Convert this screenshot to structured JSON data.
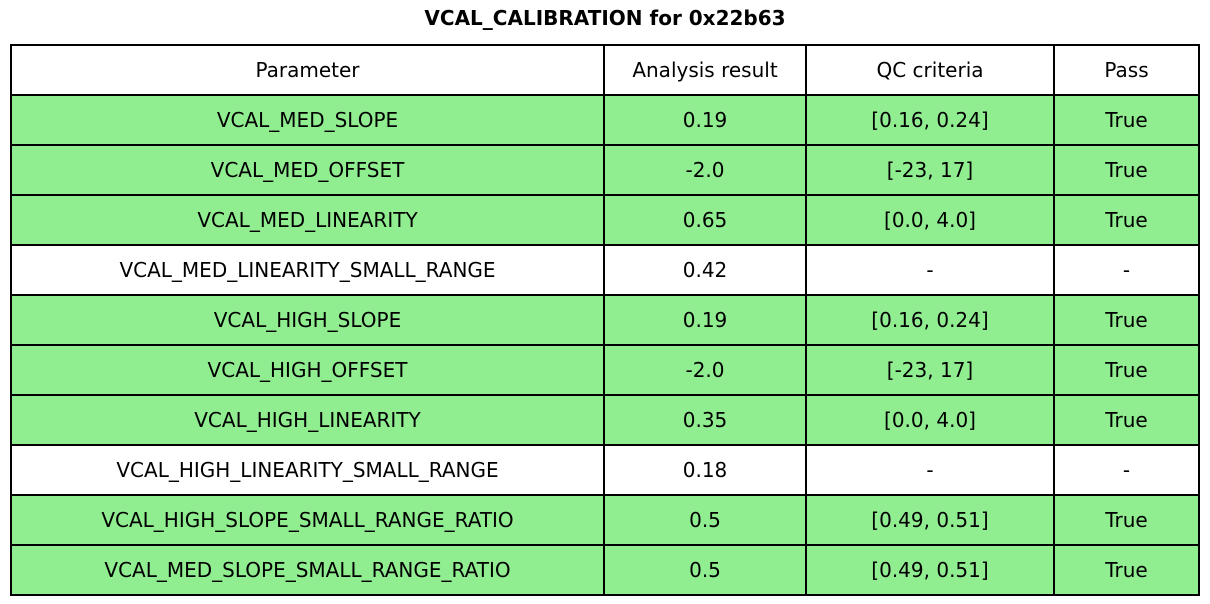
{
  "chart_data": {
    "type": "table",
    "title": "VCAL_CALIBRATION for 0x22b63",
    "columns": [
      "Parameter",
      "Analysis result",
      "QC criteria",
      "Pass"
    ],
    "rows": [
      {
        "cells": [
          "VCAL_MED_SLOPE",
          "0.19",
          "[0.16, 0.24]",
          "True"
        ],
        "highlighted": true
      },
      {
        "cells": [
          "VCAL_MED_OFFSET",
          "-2.0",
          "[-23, 17]",
          "True"
        ],
        "highlighted": true
      },
      {
        "cells": [
          "VCAL_MED_LINEARITY",
          "0.65",
          "[0.0, 4.0]",
          "True"
        ],
        "highlighted": true
      },
      {
        "cells": [
          "VCAL_MED_LINEARITY_SMALL_RANGE",
          "0.42",
          "-",
          "-"
        ],
        "highlighted": false
      },
      {
        "cells": [
          "VCAL_HIGH_SLOPE",
          "0.19",
          "[0.16, 0.24]",
          "True"
        ],
        "highlighted": true
      },
      {
        "cells": [
          "VCAL_HIGH_OFFSET",
          "-2.0",
          "[-23, 17]",
          "True"
        ],
        "highlighted": true
      },
      {
        "cells": [
          "VCAL_HIGH_LINEARITY",
          "0.35",
          "[0.0, 4.0]",
          "True"
        ],
        "highlighted": true
      },
      {
        "cells": [
          "VCAL_HIGH_LINEARITY_SMALL_RANGE",
          "0.18",
          "-",
          "-"
        ],
        "highlighted": false
      },
      {
        "cells": [
          "VCAL_HIGH_SLOPE_SMALL_RANGE_RATIO",
          "0.5",
          "[0.49, 0.51]",
          "True"
        ],
        "highlighted": true
      },
      {
        "cells": [
          "VCAL_MED_SLOPE_SMALL_RANGE_RATIO",
          "0.5",
          "[0.49, 0.51]",
          "True"
        ],
        "highlighted": true
      }
    ],
    "layout": {
      "highlight_color": "#90ee90",
      "neutral_color": "#ffffff",
      "header_bg": "#ffffff",
      "border_color": "#000000",
      "legend": "off",
      "grid": "table-borders"
    }
  }
}
